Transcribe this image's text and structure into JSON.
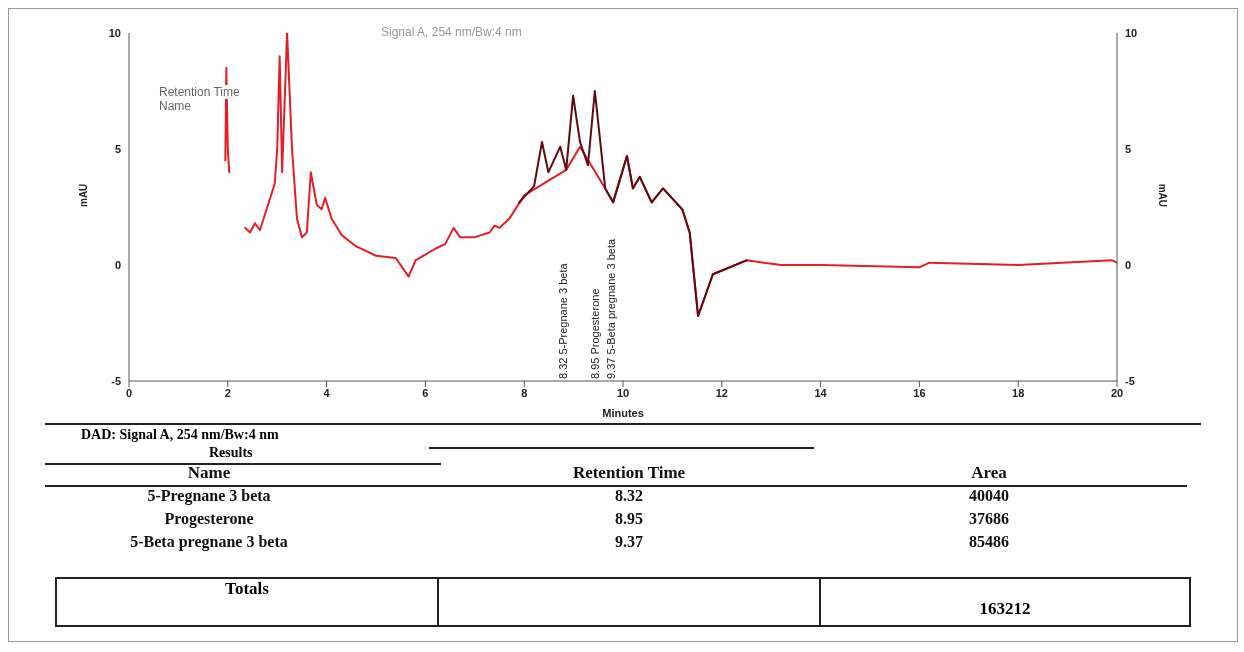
{
  "chart_data": [
    {
      "type": "line",
      "xlabel": "Minutes",
      "ylabel": "mAU",
      "y2label": "mAU",
      "xlim": [
        0,
        20
      ],
      "xticks": [
        0,
        2,
        4,
        6,
        8,
        10,
        12,
        14,
        16,
        18,
        20
      ],
      "ylim": [
        -5,
        10
      ],
      "yticks": [
        -5,
        0,
        5,
        10
      ],
      "y2lim": [
        -5,
        10
      ],
      "y2ticks": [
        -5,
        0,
        5,
        10
      ],
      "grid": false,
      "marker": "none",
      "line_style": "solid",
      "series": [
        {
          "color": "#e31e26",
          "x": [
            1.95,
            1.97,
            2.0,
            2.03,
            2.2,
            2.35,
            2.45,
            2.55,
            2.65,
            2.8,
            2.95,
            3.0,
            3.05,
            3.1,
            3.2,
            3.3,
            3.4,
            3.5,
            3.6,
            3.68,
            3.8,
            3.9,
            3.97,
            4.1,
            4.3,
            4.6,
            5.0,
            5.4,
            5.66,
            5.8,
            6.2,
            6.4,
            6.57,
            6.7,
            7.0,
            7.3,
            7.4,
            7.5,
            7.7,
            8.0,
            8.85,
            9.13,
            9.64,
            9.8,
            10.08,
            10.2,
            10.34,
            10.58,
            10.81,
            11.2,
            11.35,
            11.52,
            11.82,
            12.5,
            13.2,
            14,
            16,
            16.2,
            18,
            19.9,
            20
          ],
          "values": [
            4.5,
            8.5,
            5.0,
            4.0,
            null,
            1.6,
            1.4,
            1.8,
            1.5,
            2.5,
            3.5,
            5.0,
            9.0,
            4.0,
            10,
            5.0,
            2.0,
            1.2,
            1.4,
            4.0,
            2.6,
            2.4,
            2.9,
            2.0,
            1.3,
            0.8,
            0.4,
            0.3,
            -0.5,
            0.2,
            0.7,
            0.9,
            1.6,
            1.2,
            1.2,
            1.4,
            1.7,
            1.6,
            2.0,
            3.0,
            4.1,
            5.1,
            3.3,
            2.7,
            4.7,
            3.3,
            3.8,
            2.7,
            3.3,
            2.4,
            1.4,
            -2.2,
            -0.4,
            0.2,
            0.0,
            0.0,
            -0.1,
            0.1,
            0.0,
            0.2,
            0.1
          ]
        },
        {
          "color": "#5a0c12",
          "x": [
            7.9,
            8.2,
            8.36,
            8.49,
            8.73,
            8.85,
            8.99,
            9.13,
            9.29,
            9.43,
            9.64,
            9.8,
            10.08,
            10.2,
            10.34,
            10.58,
            10.81,
            11.2,
            11.35,
            11.52,
            11.82,
            12.5
          ],
          "values": [
            2.7,
            3.4,
            5.3,
            4.0,
            5.1,
            4.1,
            7.3,
            5.3,
            4.3,
            7.5,
            3.3,
            2.7,
            4.7,
            3.3,
            3.8,
            2.7,
            3.3,
            2.4,
            1.4,
            -2.2,
            -0.4,
            0.2
          ]
        }
      ],
      "annotations": [
        "Signal A, 254 nm/Bw:4 nm",
        "Retention Time",
        "Name",
        "8.32  5-Pregnane 3 beta",
        "8.95  Progesterone",
        "9.37  5-Beta pregnane 3 beta"
      ]
    },
    {
      "type": "other",
      "title": "DAD: Signal A, 254 nm/Bw:4 nm",
      "subtitle": "Results",
      "annotations": [
        "Name",
        "Retention Time",
        "Area",
        "5-Pregnane 3 beta",
        "8.32",
        "40040",
        "Progesterone",
        "8.95",
        "37686",
        "5-Beta pregnane 3 beta",
        "9.37",
        "85486",
        "Totals",
        "163212"
      ]
    }
  ]
}
